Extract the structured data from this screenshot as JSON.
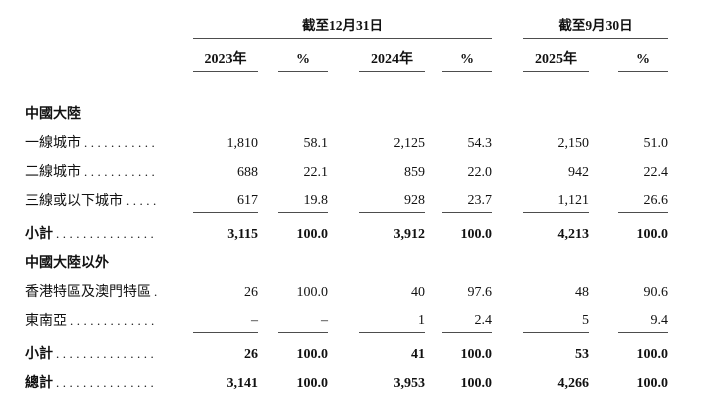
{
  "page": {
    "background": "#ffffff",
    "text_color": "#111111",
    "rule_color": "#4d4d4d"
  },
  "table": {
    "column_groups": [
      {
        "label": "截至12月31日"
      },
      {
        "label": "截至9月30日"
      }
    ],
    "columns": [
      "2023年",
      "%",
      "2024年",
      "%",
      "2025年",
      "%"
    ],
    "sections": [
      {
        "heading": "中國大陸",
        "rows": [
          {
            "label": "一線城市",
            "leader": "...........",
            "values": [
              "1,810",
              "58.1",
              "2,125",
              "54.3",
              "2,150",
              "51.0"
            ]
          },
          {
            "label": "二線城市",
            "leader": "...........",
            "values": [
              "688",
              "22.1",
              "859",
              "22.0",
              "942",
              "22.4"
            ]
          },
          {
            "label": "三線或以下城市",
            "leader": ".....",
            "values": [
              "617",
              "19.8",
              "928",
              "23.7",
              "1,121",
              "26.6"
            ]
          }
        ],
        "subtotal": {
          "label": "小計",
          "leader": "...............",
          "values": [
            "3,115",
            "100.0",
            "3,912",
            "100.0",
            "4,213",
            "100.0"
          ]
        }
      },
      {
        "heading": "中國大陸以外",
        "rows": [
          {
            "label": "香港特區及澳門特區",
            "leader": ".",
            "values": [
              "26",
              "100.0",
              "40",
              "97.6",
              "48",
              "90.6"
            ]
          },
          {
            "label": "東南亞",
            "leader": ".............",
            "values": [
              "–",
              "–",
              "1",
              "2.4",
              "5",
              "9.4"
            ]
          }
        ],
        "subtotal": {
          "label": "小計",
          "leader": "...............",
          "values": [
            "26",
            "100.0",
            "41",
            "100.0",
            "53",
            "100.0"
          ]
        }
      }
    ],
    "total": {
      "label": "總計",
      "leader": "...............",
      "values": [
        "3,141",
        "100.0",
        "3,953",
        "100.0",
        "4,266",
        "100.0"
      ]
    }
  }
}
